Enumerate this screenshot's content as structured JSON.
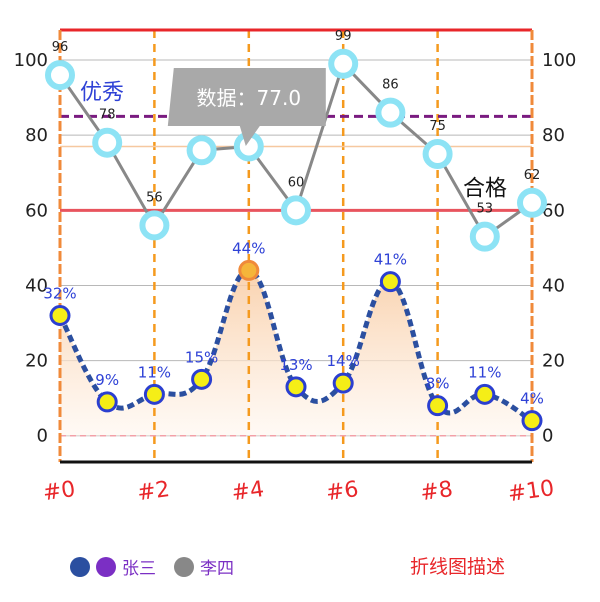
{
  "chart_data": {
    "type": "line",
    "x": [
      0,
      1,
      2,
      3,
      4,
      5,
      6,
      7,
      8,
      9,
      10
    ],
    "xtick_labels": [
      "#0",
      "#2",
      "#4",
      "#6",
      "#8",
      "#10"
    ],
    "xtick_values": [
      0,
      2,
      4,
      6,
      8,
      10
    ],
    "ylim": [
      -7,
      108
    ],
    "yticks": [
      "0",
      "20",
      "40",
      "60",
      "80",
      "100"
    ],
    "ytick_values": [
      0,
      20,
      40,
      60,
      80,
      100
    ],
    "series": [
      {
        "name": "张三",
        "values": [
          32,
          9,
          11,
          15,
          44,
          13,
          14,
          41,
          8,
          11,
          4
        ],
        "labels": [
          "32%",
          "9%",
          "11%",
          "15%",
          "44%",
          "13%",
          "14%",
          "41%",
          "8%",
          "11%",
          "4%"
        ],
        "color": "#2b4fa0",
        "marker_fill": "#f5ee17",
        "highlight_fill": "#f5b53a",
        "area_fill": "#fbe2c8"
      },
      {
        "name": "李四",
        "values": [
          96,
          78,
          56,
          76,
          77,
          60,
          99,
          86,
          75,
          53,
          62
        ],
        "labels": [
          "96",
          "78",
          "56",
          "",
          "",
          "60",
          "99",
          "86",
          "75",
          "53",
          "62"
        ],
        "color": "#888888",
        "marker_color": "#8de3f5"
      }
    ],
    "reference_lines": [
      {
        "value": 85,
        "label": "优秀",
        "color": "#7a1b80",
        "style": "dashed"
      },
      {
        "value": 60,
        "label": "合格",
        "color": "#e8545e",
        "style": "solid"
      },
      {
        "value": 77,
        "label": "",
        "color": "#f6c8a0",
        "style": "solid"
      },
      {
        "value": 0,
        "label": "",
        "color": "#f3a0a8",
        "style": "dashed"
      }
    ],
    "tooltip": {
      "text": "数据：77.0",
      "x_index": 4,
      "series": 1
    },
    "highlight_index": 4
  },
  "legend": {
    "items": [
      {
        "name": "张三",
        "colors": [
          "#2b4fa0",
          "#7b2fc4"
        ]
      },
      {
        "name": "李四",
        "colors": [
          "#888888"
        ]
      }
    ]
  },
  "description": "折线图描述",
  "colors": {
    "border_top": "#e8262a",
    "border_side": "#f08a3a",
    "vertical_grid": "#f59a1e",
    "h_grid": "#b8b8b8",
    "axis_text": "#222222",
    "xtick_text": "#e8262a",
    "label_blue": "#2f42d6"
  }
}
